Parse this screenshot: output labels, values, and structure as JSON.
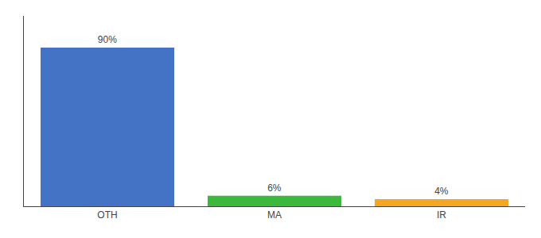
{
  "chart_data": {
    "type": "bar",
    "categories": [
      "OTH",
      "MA",
      "IR"
    ],
    "values": [
      90,
      6,
      4
    ],
    "value_labels": [
      "90%",
      "6%",
      "4%"
    ],
    "data_labels": true,
    "colors": [
      "#4472c4",
      "#3cb83c",
      "#f5a623"
    ],
    "ylim": [
      0,
      108
    ],
    "tick_labels": "x",
    "grid": false
  }
}
